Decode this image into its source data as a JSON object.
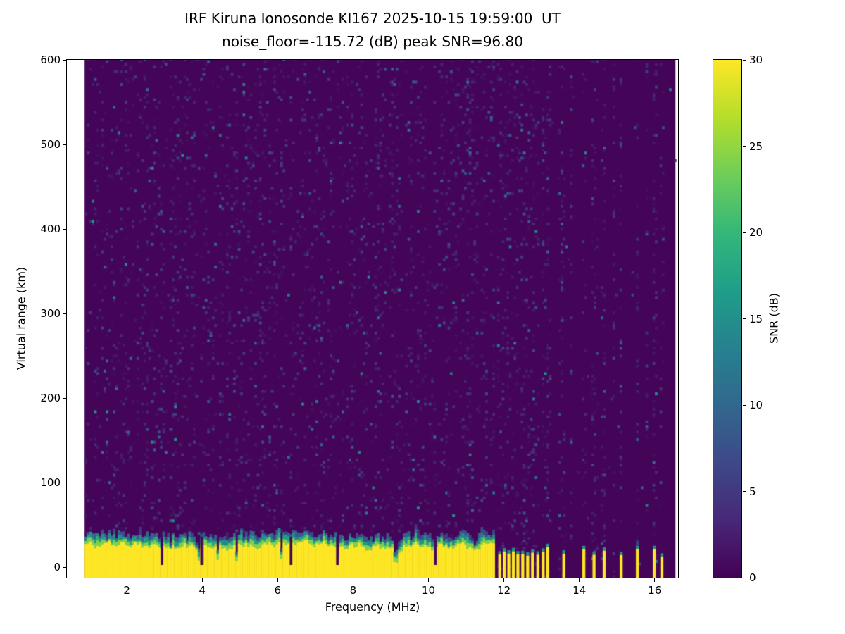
{
  "chart_data": {
    "type": "heatmap",
    "title": "IRF Kiruna Ionosonde KI167 2025-10-15 19:59:00  UT",
    "subtitle": "noise_floor=-115.72 (dB) peak SNR=96.80",
    "xlabel": "Frequency (MHz)",
    "ylabel": "Virtual range (km)",
    "colorbar_label": "SNR (dB)",
    "x_ticks": [
      2,
      4,
      6,
      8,
      10,
      12,
      14,
      16
    ],
    "y_ticks": [
      0,
      100,
      200,
      300,
      400,
      500,
      600
    ],
    "colorbar_ticks": [
      0,
      5,
      10,
      15,
      20,
      25,
      30
    ],
    "xlim": [
      0.41,
      16.62
    ],
    "ylim": [
      -12.5,
      600
    ],
    "clim": [
      0,
      30
    ],
    "grid": false,
    "legend": "colorbar-right",
    "colormap": "viridis",
    "colormap_stops": [
      "#440154",
      "#482878",
      "#3e4989",
      "#31688e",
      "#26828e",
      "#1f9e89",
      "#35b779",
      "#6ece58",
      "#b5de2b",
      "#fde725"
    ],
    "station": "IRF Kiruna Ionosonde KI167",
    "timestamp_ut": "2025-10-15 19:59:00",
    "noise_floor_db": -115.72,
    "peak_snr_db": 96.8,
    "features": {
      "sweep_freq_range_mhz": [
        0.88,
        16.55
      ],
      "ground_echo_band": {
        "freq_range_mhz": [
          0.88,
          11.75
        ],
        "range_km": [
          -12.5,
          35
        ],
        "snr_db": 30,
        "gaps_mhz": [
          2.9,
          3.95,
          6.32,
          7.55,
          10.15
        ],
        "description": "Continuous saturated (>=30 dB) near-zero-range return across the sweep up to ~11.75 MHz with ragged green/teal upper edge near 20-35 km"
      },
      "interference_pulses": {
        "freq_mhz": [
          11.85,
          11.97,
          12.09,
          12.21,
          12.33,
          12.46,
          12.59,
          12.72,
          12.86,
          13.0,
          13.12,
          13.55,
          14.08,
          14.35,
          14.62,
          15.07,
          15.5,
          15.95,
          16.15
        ],
        "range_km": [
          -12.5,
          25
        ],
        "description": "Isolated strong low-range returns above ~11.8 MHz with full-height noise stripes at the same frequencies"
      },
      "noise_background": {
        "snr_db_range": [
          0,
          15
        ],
        "speckle_cell_mhz": 0.0625,
        "speckle_cell_km": 3,
        "speckle_density_below_11_8mhz": 0.07,
        "active_column_fraction_above_11_8mhz": 0.22,
        "description": "Dark (~0 dB) viridis background with sparse 1-15 dB speckle; above ~11.8 MHz the noise is confined to sparse vertical columns"
      },
      "ionospheric_echoes": "No distinct ionospheric echo traces visible above ~40 km"
    }
  }
}
